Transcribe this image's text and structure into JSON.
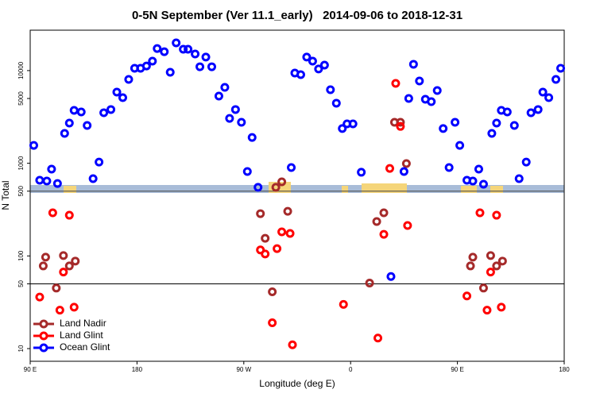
{
  "chart_data": {
    "type": "scatter",
    "title": "0-5N September (Ver 11.1_early)   2014-09-06 to 2018-12-31",
    "x_label": "Longitude (deg E)",
    "y_label": "N Total",
    "log_y": true,
    "legend": "bottom-left",
    "xlim": [
      90,
      540
    ],
    "xticks": [
      {
        "value": 90,
        "label": "90 E"
      },
      {
        "value": 180,
        "label": "180"
      },
      {
        "value": 270,
        "label": "90 W"
      },
      {
        "value": 360,
        "label": "0"
      },
      {
        "value": 450,
        "label": "90 E"
      },
      {
        "value": 540,
        "label": "180"
      }
    ],
    "ylim": [
      7.3,
      27300
    ],
    "yticks": [
      10,
      50,
      100,
      500,
      1000,
      5000,
      10000
    ],
    "ref_lines": [
      50,
      500
    ],
    "series": [
      {
        "name": "Land Nadir",
        "color": "#a52a2a",
        "x": [
          101,
          103,
          112,
          118,
          123,
          128,
          284,
          288,
          294,
          297,
          302,
          307,
          376,
          382,
          388,
          397,
          402,
          407,
          461,
          463,
          472,
          478,
          483,
          488
        ],
        "values": [
          78,
          97,
          45,
          101,
          78,
          88,
          286,
          155,
          41,
          550,
          630,
          303,
          51,
          235,
          292,
          2770,
          2770,
          993,
          78,
          97,
          45,
          101,
          78,
          88
        ]
      },
      {
        "name": "Land Glint",
        "color": "#ff0000",
        "x": [
          98,
          109,
          115,
          118,
          123,
          127,
          284,
          288,
          294,
          298,
          302,
          309,
          311,
          354,
          383,
          388,
          393,
          398,
          402,
          408,
          458,
          469,
          475,
          478,
          483,
          487
        ],
        "values": [
          36,
          292,
          26,
          67,
          275,
          28,
          116,
          105,
          19,
          120,
          182,
          175,
          11,
          30,
          13,
          171,
          880,
          7280,
          2500,
          213,
          37,
          292,
          26,
          67,
          275,
          28
        ]
      },
      {
        "name": "Ocean Glint",
        "color": "#0000ff",
        "x": [
          93,
          98,
          104,
          108,
          113,
          119,
          123,
          127,
          133,
          138,
          143,
          148,
          152,
          158,
          163,
          168,
          173,
          178,
          183,
          188,
          193,
          197,
          203,
          208,
          213,
          219,
          223,
          229,
          233,
          238,
          243,
          249,
          254,
          258,
          263,
          268,
          273,
          277,
          282,
          310,
          313,
          318,
          323,
          328,
          333,
          338,
          343,
          348,
          353,
          357,
          362,
          369,
          394,
          405,
          409,
          413,
          418,
          423,
          428,
          433,
          438,
          443,
          448,
          452,
          458,
          463,
          468,
          472,
          479,
          483,
          487,
          492,
          498,
          502,
          508,
          512,
          518,
          522,
          527,
          533,
          537
        ],
        "values": [
          1560,
          656,
          643,
          865,
          605,
          2100,
          2715,
          3720,
          3580,
          2560,
          682,
          1030,
          3510,
          3800,
          5860,
          5100,
          8040,
          10600,
          10600,
          11200,
          12650,
          17300,
          16000,
          9600,
          19900,
          17000,
          17000,
          15100,
          11000,
          14000,
          11000,
          5310,
          6590,
          3050,
          3800,
          2770,
          815,
          1900,
          550,
          900,
          9400,
          9040,
          14000,
          12650,
          10400,
          11450,
          6220,
          4450,
          2370,
          2660,
          2660,
          800,
          60,
          815,
          5000,
          11700,
          7730,
          4910,
          4620,
          6090,
          2370,
          900,
          2770,
          1560,
          656,
          643,
          865,
          594,
          2100,
          2715,
          3720,
          3580,
          2560,
          682,
          1030,
          3510,
          3800,
          5860,
          5100,
          8040,
          10600
        ]
      }
    ]
  }
}
